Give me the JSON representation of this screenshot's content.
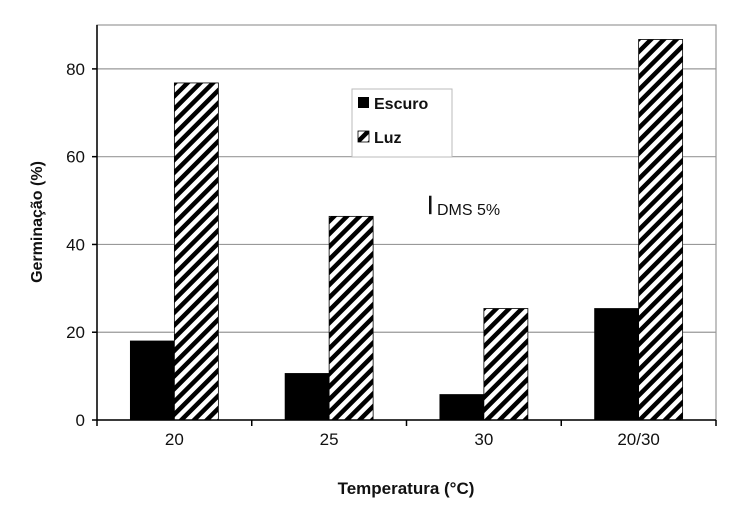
{
  "chart_data": {
    "type": "bar",
    "title": "",
    "xlabel": "Temperatura (°C)",
    "ylabel": "Germinação (%)",
    "categories": [
      "20",
      "25",
      "30",
      "20/30"
    ],
    "series": [
      {
        "name": "Escuro",
        "values": [
          18,
          10.6,
          5.8,
          25.4
        ],
        "color": "#000000",
        "pattern": "solid"
      },
      {
        "name": "Luz",
        "values": [
          76.8,
          46.4,
          25.4,
          86.7
        ],
        "color": "#000000",
        "pattern": "diagonal-hatch"
      }
    ],
    "ylim": [
      0,
      90
    ],
    "yticks": [
      0,
      20,
      40,
      60,
      80
    ],
    "grid": true,
    "legend": "top-center",
    "annotation": {
      "label": "DMS 5%",
      "value": 4.2
    }
  }
}
